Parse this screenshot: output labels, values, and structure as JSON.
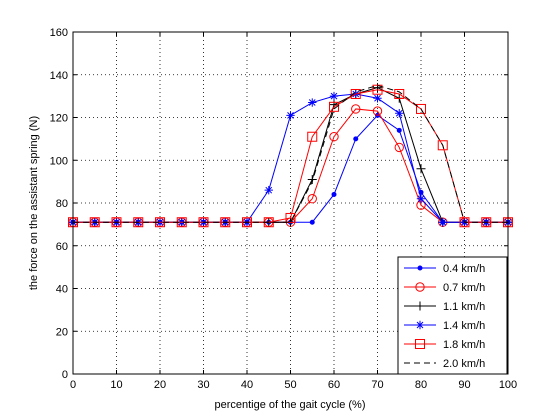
{
  "chart_data": {
    "type": "line",
    "title": "",
    "xlabel": "percentige of the gait cycle (%)",
    "ylabel": "the force on the assistant spring (N)",
    "xlim": [
      0,
      100
    ],
    "ylim": [
      0,
      160
    ],
    "xticks": [
      "0",
      "10",
      "20",
      "30",
      "40",
      "50",
      "60",
      "70",
      "80",
      "90",
      "100"
    ],
    "yticks": [
      "0",
      "20",
      "40",
      "60",
      "80",
      "100",
      "120",
      "140",
      "160"
    ],
    "grid": true,
    "legend_position": "bottom-right",
    "x": [
      0,
      5,
      10,
      15,
      20,
      25,
      30,
      35,
      40,
      45,
      50,
      55,
      60,
      65,
      70,
      75,
      80,
      85,
      90,
      95,
      100
    ],
    "series": [
      {
        "name": "0.4 km/h",
        "color": "#0000ff",
        "marker": "dot",
        "dash": "solid",
        "values": [
          71,
          71,
          71,
          71,
          71,
          71,
          71,
          71,
          71,
          71,
          71,
          71,
          84,
          110,
          121,
          114,
          85,
          71,
          71,
          71,
          71
        ]
      },
      {
        "name": "0.7 km/h",
        "color": "#ff0000",
        "marker": "circle",
        "dash": "solid",
        "values": [
          71,
          71,
          71,
          71,
          71,
          71,
          71,
          71,
          71,
          71,
          71,
          82,
          111,
          124,
          123,
          106,
          79,
          71,
          71,
          71,
          71
        ]
      },
      {
        "name": "1.1 km/h",
        "color": "#000000",
        "marker": "plus",
        "dash": "solid",
        "values": [
          71,
          71,
          71,
          71,
          71,
          71,
          71,
          71,
          71,
          71,
          71,
          91,
          126,
          131,
          134,
          129,
          96,
          71,
          71,
          71,
          71
        ]
      },
      {
        "name": "1.4 km/h",
        "color": "#0000ff",
        "marker": "star",
        "dash": "solid",
        "values": [
          71,
          71,
          71,
          71,
          71,
          71,
          71,
          71,
          71,
          86,
          121,
          127,
          130,
          131,
          129,
          122,
          82,
          71,
          71,
          71,
          71
        ]
      },
      {
        "name": "1.8 km/h",
        "color": "#ff0000",
        "marker": "square",
        "dash": "solid",
        "values": [
          71,
          71,
          71,
          71,
          71,
          71,
          71,
          71,
          71,
          71,
          73,
          111,
          125,
          131,
          133,
          131,
          124,
          107,
          71,
          71,
          71
        ]
      },
      {
        "name": "2.0 km/h",
        "color": "#000000",
        "marker": "none",
        "dash": "dashed",
        "values": [
          71,
          71,
          71,
          71,
          71,
          71,
          71,
          71,
          71,
          71,
          71,
          90,
          124,
          132,
          135,
          132,
          124,
          107,
          71,
          71,
          71
        ]
      }
    ]
  }
}
